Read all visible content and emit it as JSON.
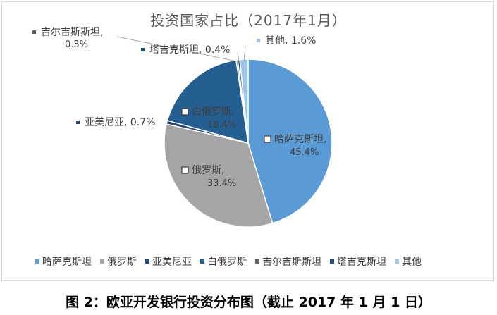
{
  "chart_data": {
    "type": "pie",
    "title": "投资国家占比（2017年1月）",
    "slices": [
      {
        "name": "哈萨克斯坦",
        "value": 45.4,
        "label": "45.4%",
        "color": "#5b9bd5",
        "sep": ", "
      },
      {
        "name": "俄罗斯",
        "value": 33.4,
        "label": "33.4%",
        "color": "#a5a5a5",
        "sep": ", "
      },
      {
        "name": "亚美尼亚",
        "value": 0.7,
        "label": "0.7%",
        "color": "#264478",
        "sep": ", "
      },
      {
        "name": "白俄罗斯",
        "value": 18.4,
        "label": "18.4%",
        "color": "#255e91",
        "sep": ", "
      },
      {
        "name": "吉尔吉斯斯坦",
        "value": 0.3,
        "label": "0.3%",
        "color": "#636363",
        "sep": ", "
      },
      {
        "name": "塔吉克斯坦",
        "value": 0.4,
        "label": "0.4%",
        "color": "#1f4e79",
        "sep": ", "
      },
      {
        "name": "其他",
        "value": 1.6,
        "label": "1.6%",
        "color": "#9dc3e6",
        "sep": ", "
      }
    ],
    "legend_position": "bottom"
  },
  "caption": "图 2：欧亚开发银行投资分布图（截止 2017 年 1 月 1 日）"
}
